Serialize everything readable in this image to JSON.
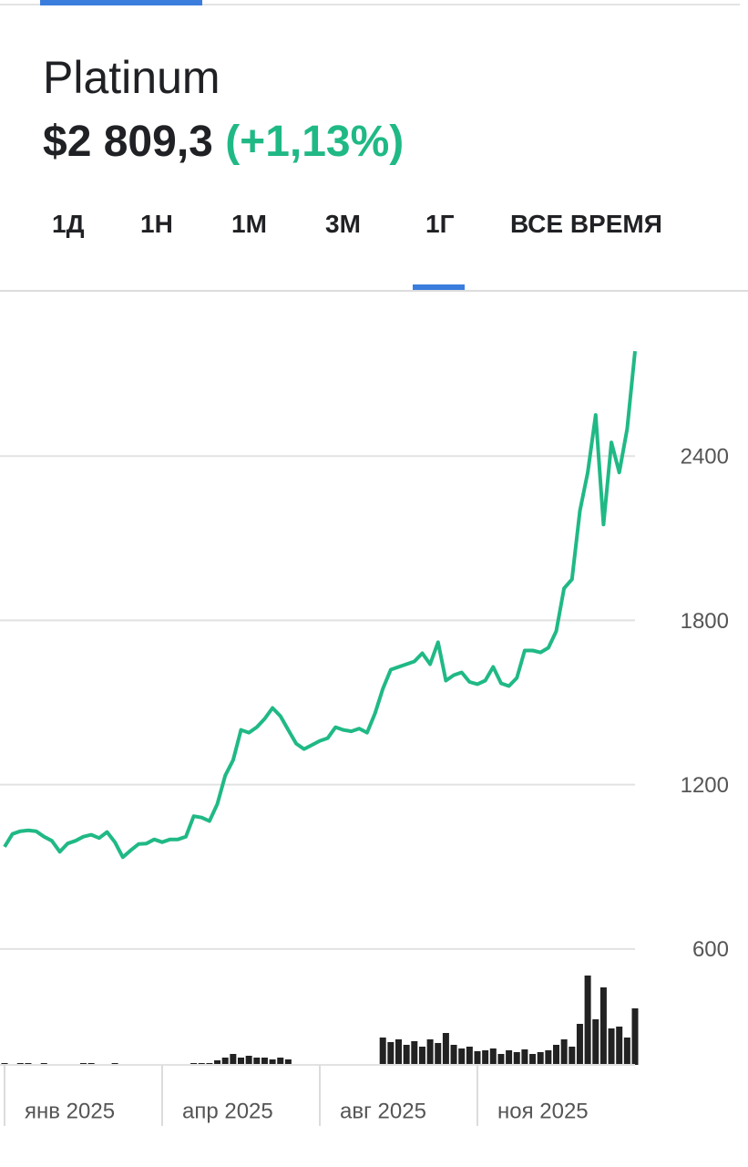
{
  "header": {
    "title": "Platinum",
    "price": "$2 809,3",
    "change": "(+1,13%)"
  },
  "tabs": {
    "items": [
      "1Д",
      "1Н",
      "1М",
      "3М",
      "1Г",
      "ВСЕ ВРЕМЯ"
    ],
    "selected": 4
  },
  "chart_data": {
    "type": "line",
    "categories": [
      "янв 2025",
      null,
      null,
      null,
      null,
      null,
      null,
      null,
      null,
      null,
      null,
      null,
      null,
      null,
      null,
      null,
      null,
      null,
      null,
      null,
      "апр 2025",
      null,
      null,
      null,
      null,
      null,
      null,
      null,
      null,
      null,
      null,
      null,
      null,
      null,
      null,
      null,
      null,
      null,
      null,
      null,
      "авг 2025",
      null,
      null,
      null,
      null,
      null,
      null,
      null,
      null,
      null,
      null,
      null,
      null,
      null,
      null,
      null,
      null,
      null,
      null,
      null,
      "ноя 2025",
      null,
      null,
      null,
      null,
      null,
      null,
      null,
      null,
      null,
      null,
      null,
      null,
      null,
      null,
      null,
      null,
      null,
      null,
      null,
      null
    ],
    "series": [
      {
        "color": "#20b985",
        "values": [
          973,
          1020,
          1030,
          1033,
          1030,
          1010,
          995,
          955,
          985,
          995,
          1010,
          1017,
          1005,
          1027,
          990,
          935,
          960,
          983,
          985,
          1000,
          990,
          1000,
          1000,
          1010,
          1085,
          1080,
          1067,
          1130,
          1233,
          1290,
          1400,
          1390,
          1410,
          1440,
          1480,
          1450,
          1400,
          1350,
          1330,
          1345,
          1360,
          1370,
          1410,
          1400,
          1395,
          1405,
          1390,
          1460,
          1550,
          1620,
          1630,
          1640,
          1650,
          1680,
          1640,
          1720,
          1580,
          1600,
          1610,
          1575,
          1567,
          1580,
          1630,
          1570,
          1560,
          1590,
          1690,
          1690,
          1683,
          1700,
          1760,
          1917,
          1950,
          2200,
          2340,
          2550,
          2150,
          2450,
          2340,
          2500,
          2783
        ]
      }
    ],
    "volume": {
      "color": "#222222",
      "ylim": [
        0,
        100
      ],
      "values": [
        2,
        0,
        2,
        2,
        0,
        2,
        0,
        0,
        0,
        0,
        2,
        2,
        0,
        0,
        2,
        0,
        0,
        0,
        0,
        0,
        0,
        0,
        0,
        0,
        2,
        2,
        2,
        5,
        8,
        12,
        8,
        10,
        8,
        8,
        6,
        8,
        6,
        0,
        0,
        0,
        0,
        0,
        0,
        0,
        0,
        0,
        0,
        0,
        30,
        25,
        28,
        22,
        26,
        20,
        28,
        24,
        35,
        22,
        18,
        20,
        15,
        16,
        18,
        12,
        16,
        14,
        17,
        12,
        14,
        16,
        22,
        28,
        20,
        45,
        98,
        50,
        85,
        40,
        42,
        30,
        62
      ]
    },
    "ylim": [
      170,
      2970
    ],
    "yticks": [
      600,
      1200,
      1800,
      2400
    ],
    "grid": true
  }
}
